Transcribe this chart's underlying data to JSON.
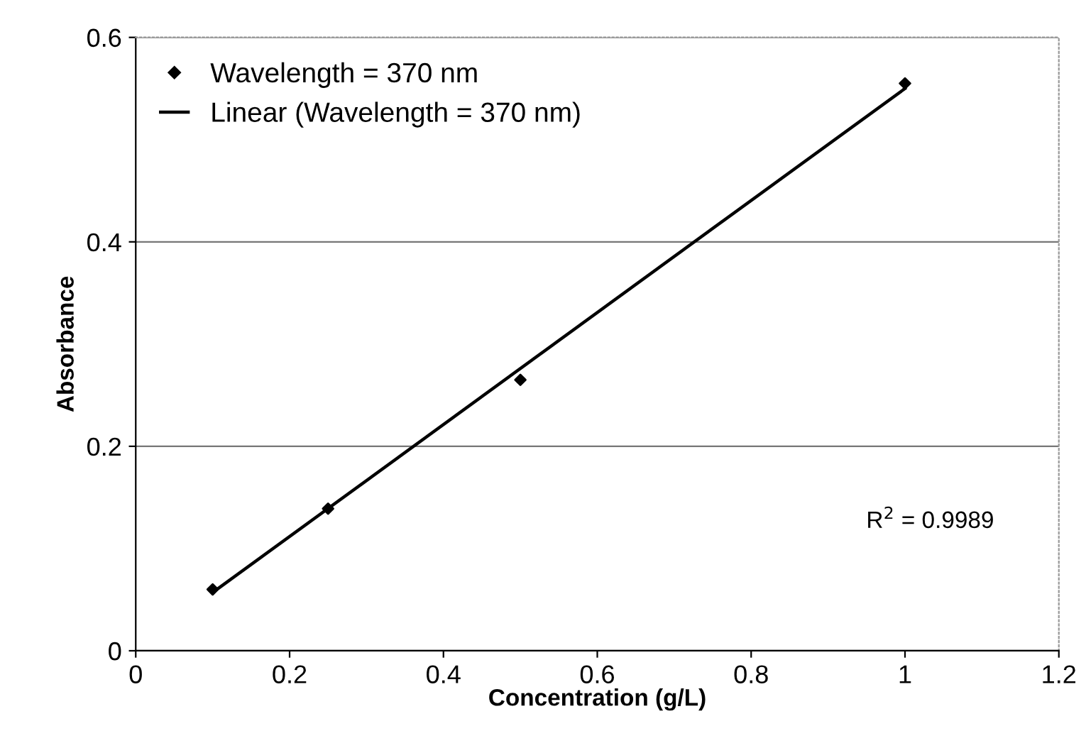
{
  "chart_data": {
    "type": "scatter",
    "xlabel": "Concentration (g/L)",
    "ylabel": "Absorbance",
    "series": [
      {
        "name": "Wavelength = 370 nm",
        "color": "#000000",
        "marker": "diamond",
        "x": [
          0.1,
          0.25,
          0.5,
          1.0
        ],
        "values": [
          0.06,
          0.139,
          0.265,
          0.555
        ]
      },
      {
        "name": "Linear (Wavelength = 370 nm)",
        "type": "line",
        "color": "#000000",
        "marker": "none",
        "x": [
          0.1,
          1.0
        ],
        "values": [
          0.057,
          0.55
        ]
      }
    ],
    "xlim": [
      0,
      1.2
    ],
    "xticks": [
      0,
      0.2,
      0.4,
      0.6,
      0.8,
      1,
      1.2
    ],
    "ylim": [
      0,
      0.6
    ],
    "yticks": [
      0,
      0.2,
      0.4,
      0.6
    ],
    "grid": "y",
    "legend": "top left",
    "annotations": [
      "R$^{2}$ = 0.9989"
    ]
  }
}
